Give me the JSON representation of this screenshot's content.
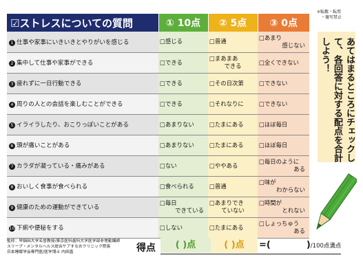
{
  "header": {
    "question_title": "☑ストレスについての質問",
    "score_10": "① 10点",
    "score_5": "② 5点",
    "score_0": "③ 0点"
  },
  "questions": [
    {
      "num": "1",
      "text": "仕事や家事にいきいきとやりがいを感じる",
      "a10": [
        "□感じる"
      ],
      "a5": [
        "□普通"
      ],
      "a0": [
        "□あまり",
        "感じない"
      ]
    },
    {
      "num": "2",
      "text": "集中して仕事や家事ができる",
      "a10": [
        "□できる"
      ],
      "a5": [
        "□まあまあ",
        "できる"
      ],
      "a0": [
        "□全くできない"
      ]
    },
    {
      "num": "3",
      "text": "疲れずに一日行動できる",
      "a10": [
        "□できる"
      ],
      "a5": [
        "□その日次第"
      ],
      "a0": [
        "□できない"
      ]
    },
    {
      "num": "4",
      "text": "周りの人との会話を楽しむことができる",
      "a10": [
        "□できる"
      ],
      "a5": [
        "□それなりに"
      ],
      "a0": [
        "□できない"
      ]
    },
    {
      "num": "5",
      "text": "イライラしたり、おこりっぽいことがある",
      "a10": [
        "□あまりない"
      ],
      "a5": [
        "□たまにある"
      ],
      "a0": [
        "□ほぼ毎日"
      ]
    },
    {
      "num": "6",
      "text": "頭が痛いことがある",
      "a10": [
        "□あまりない"
      ],
      "a5": [
        "□たまにある"
      ],
      "a0": [
        "□ほぼ毎日"
      ]
    },
    {
      "num": "7",
      "text": "カラダが凝っている・痛みがある",
      "a10": [
        "□ない"
      ],
      "a5": [
        "□ややある"
      ],
      "a0": [
        "□毎日のように",
        "ある"
      ]
    },
    {
      "num": "8",
      "text": "おいしく食事が食べられる",
      "a10": [
        "□食べられる"
      ],
      "a5": [
        "□普通"
      ],
      "a0": [
        "□味が",
        "わからない"
      ]
    },
    {
      "num": "9",
      "text": "健康のための運動ができている",
      "a10": [
        "□毎日",
        "できている"
      ],
      "a5": [
        "□あまりでき",
        "ていない"
      ],
      "a0": [
        "□時間が",
        "とれない"
      ]
    },
    {
      "num": "10",
      "text": "下痢や便秘をする",
      "a10": [
        "□しない"
      ],
      "a5": [
        "□たまにある"
      ],
      "a0": [
        "□しょっちゅう",
        "ある"
      ]
    }
  ],
  "score": {
    "label": "得点",
    "box_10": "(  )点",
    "box_5": "(  )点",
    "total_open": "=(",
    "total_close": ")",
    "max": "/100点満点"
  },
  "credits": [
    "監修：早稲田大学名誉教授/東京医科歯科大学医学部非常勤講師",
    "スリープ・メンタルヘルス総合ケアすなおクリニック院長",
    "日本睡眠学会専門医/医学博士 内田直"
  ],
  "note": [
    "※転載・転用",
    "・複写禁止"
  ],
  "instruction": "あてはまるところにチェックして、各回答に対する配点を合計しよう！",
  "colors": {
    "header_navy": "#1f2d6e",
    "green": "#5eae3b",
    "yellow": "#eeb21b",
    "orange": "#ea7b35",
    "pencil_green": "#4caa3a"
  },
  "icons": {
    "checkbox": "ballot-box-with-check",
    "pencil": "pencil-icon"
  }
}
